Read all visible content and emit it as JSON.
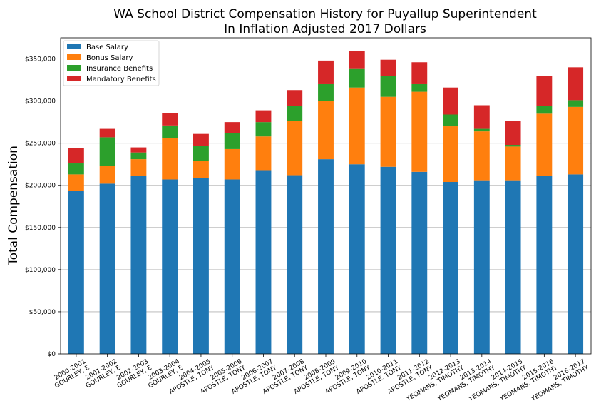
{
  "chart_data": {
    "type": "bar",
    "stacked": true,
    "title": [
      "WA School District Compensation History for Puyallup Superintendent",
      "In Inflation Adjusted 2017 Dollars"
    ],
    "xlabel": "",
    "ylabel": "Total Compensation",
    "ylim": [
      0,
      375000
    ],
    "yticks": [
      0,
      50000,
      100000,
      150000,
      200000,
      250000,
      300000,
      350000
    ],
    "ytick_labels": [
      "$0",
      "$50,000",
      "$100,000",
      "$150,000",
      "$200,000",
      "$250,000",
      "$300,000",
      "$350,000"
    ],
    "grid": "horizontal",
    "legend_position": "top-left",
    "categories": [
      [
        "2000-2001",
        "GOURLEY, E"
      ],
      [
        "2001-2002",
        "GOURLEY, E"
      ],
      [
        "2002-2003",
        "GOURLEY, E"
      ],
      [
        "2003-2004",
        "GOURLEY, E"
      ],
      [
        "2004-2005",
        "APOSTLE, TONY"
      ],
      [
        "2005-2006",
        "APOSTLE, TONY"
      ],
      [
        "2006-2007",
        "APOSTLE, TONY"
      ],
      [
        "2007-2008",
        "APOSTLE, TONY"
      ],
      [
        "2008-2009",
        "APOSTLE, TONY"
      ],
      [
        "2009-2010",
        "APOSTLE, TONY"
      ],
      [
        "2010-2011",
        "APOSTLE, TONY"
      ],
      [
        "2011-2012",
        "APOSTLE, TONY"
      ],
      [
        "2012-2013",
        "YEOMANS, TIMOTHY"
      ],
      [
        "2013-2014",
        "YEOMANS, TIMOTHY"
      ],
      [
        "2014-2015",
        "YEOMANS, TIMOTHY"
      ],
      [
        "2015-2016",
        "YEOMANS, TIMOTHY"
      ],
      [
        "2016-2017",
        "YEOMANS, TIMOTHY"
      ]
    ],
    "series": [
      {
        "name": "Base Salary",
        "color": "#1f77b4",
        "values": [
          193000,
          202000,
          211000,
          207000,
          209000,
          207000,
          218000,
          212000,
          231000,
          225000,
          222000,
          216000,
          204000,
          206000,
          206000,
          211000,
          213000
        ]
      },
      {
        "name": "Bonus Salary",
        "color": "#ff7f0e",
        "values": [
          20000,
          21000,
          20000,
          49000,
          20000,
          36000,
          40000,
          64000,
          69000,
          91000,
          83000,
          95000,
          66000,
          58000,
          40000,
          74000,
          80000
        ]
      },
      {
        "name": "Insurance Benefits",
        "color": "#2ca02c",
        "values": [
          13000,
          34000,
          8000,
          15000,
          18000,
          19000,
          17000,
          18000,
          20000,
          22000,
          25000,
          9000,
          14000,
          3000,
          2000,
          9000,
          8000
        ]
      },
      {
        "name": "Mandatory Benefits",
        "color": "#d62728",
        "values": [
          18000,
          10000,
          6000,
          15000,
          14000,
          13000,
          14000,
          19000,
          28000,
          21000,
          19000,
          26000,
          32000,
          28000,
          28000,
          36000,
          39000
        ]
      }
    ]
  }
}
